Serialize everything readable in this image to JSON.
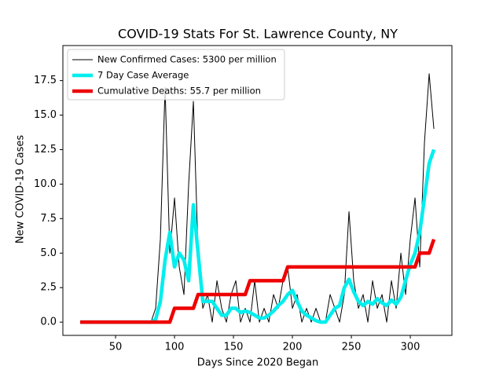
{
  "chart_data": {
    "type": "line",
    "title": "COVID-19 Stats For St. Lawrence County, NY",
    "x_label": "Days Since 2020 Began",
    "y_label": "New COVID-19 Cases",
    "xlim": [
      5.3,
      335.3
    ],
    "ylim": [
      -0.96,
      20.04
    ],
    "xticks": [
      50,
      100,
      150,
      200,
      250,
      300
    ],
    "yticks": [
      {
        "value": 0,
        "label": "0.0"
      },
      {
        "value": 2.5,
        "label": "2.5"
      },
      {
        "value": 5,
        "label": "5.0"
      },
      {
        "value": 7.5,
        "label": "7.5"
      },
      {
        "value": 10,
        "label": "10.0"
      },
      {
        "value": 12.5,
        "label": "12.5"
      },
      {
        "value": 15,
        "label": "15.0"
      },
      {
        "value": 17.5,
        "label": "17.5"
      }
    ],
    "grid": false,
    "legend": "upper left",
    "x": [
      20,
      24,
      28,
      32,
      36,
      40,
      44,
      48,
      52,
      56,
      60,
      64,
      68,
      72,
      76,
      80,
      84,
      88,
      92,
      96,
      100,
      104,
      108,
      112,
      116,
      120,
      124,
      128,
      132,
      136,
      140,
      144,
      148,
      152,
      156,
      160,
      164,
      168,
      172,
      176,
      180,
      184,
      188,
      192,
      196,
      200,
      204,
      208,
      212,
      216,
      220,
      224,
      228,
      232,
      236,
      240,
      244,
      248,
      252,
      256,
      260,
      264,
      268,
      272,
      276,
      280,
      284,
      288,
      292,
      296,
      300,
      304,
      308,
      312,
      316,
      320
    ],
    "series": [
      {
        "name": "New Confirmed Cases: 5300 per million",
        "color": "#000000",
        "linewidth": 1,
        "values": [
          0,
          0,
          0,
          0,
          0,
          0,
          0,
          0,
          0,
          0,
          0,
          0,
          0,
          0,
          0,
          0,
          1,
          6,
          17,
          5,
          9,
          4,
          2,
          10,
          16,
          5,
          1,
          2,
          0,
          3,
          1,
          0,
          2,
          3,
          0,
          1,
          0,
          3,
          0,
          1,
          0,
          2,
          1,
          3,
          4,
          1,
          2,
          0,
          1,
          0,
          1,
          0,
          0,
          2,
          1,
          0,
          2,
          8,
          3,
          1,
          2,
          0,
          3,
          1,
          2,
          0,
          3,
          1,
          5,
          2,
          6,
          9,
          4,
          13,
          18,
          14
        ]
      },
      {
        "name": "7 Day Case Average",
        "color": "#00eeee",
        "linewidth": 4.5,
        "values": [
          0,
          0,
          0,
          0,
          0,
          0,
          0,
          0,
          0,
          0,
          0,
          0,
          0,
          0,
          0,
          0,
          0.2,
          1.5,
          4.5,
          6.5,
          4,
          5,
          4.5,
          3,
          8.5,
          5,
          1.5,
          1.5,
          1.5,
          1,
          0.5,
          0.5,
          1,
          1,
          0.7,
          0.8,
          0.7,
          0.5,
          0.3,
          0.3,
          0.5,
          0.8,
          1.2,
          1.5,
          2,
          2.3,
          1.5,
          0.8,
          0.5,
          0.3,
          0.1,
          0,
          0,
          0.5,
          1,
          1.2,
          2.5,
          3.1,
          2.2,
          1.5,
          1.2,
          1.5,
          1.3,
          1.7,
          1.4,
          1.2,
          1.6,
          1.3,
          1.8,
          3,
          4.2,
          5,
          6.5,
          9,
          11.5,
          12.5
        ]
      },
      {
        "name": "Cumulative Deaths: 55.7 per million",
        "color": "#ee0000",
        "linewidth": 4.5,
        "values": [
          0,
          0,
          0,
          0,
          0,
          0,
          0,
          0,
          0,
          0,
          0,
          0,
          0,
          0,
          0,
          0,
          0,
          0,
          0,
          0,
          1,
          1,
          1,
          1,
          1,
          2,
          2,
          2,
          2,
          2,
          2,
          2,
          2,
          2,
          2,
          2,
          3,
          3,
          3,
          3,
          3,
          3,
          3,
          3,
          4,
          4,
          4,
          4,
          4,
          4,
          4,
          4,
          4,
          4,
          4,
          4,
          4,
          4,
          4,
          4,
          4,
          4,
          4,
          4,
          4,
          4,
          4,
          4,
          4,
          4,
          4,
          4,
          5,
          5,
          5,
          6
        ]
      }
    ]
  }
}
